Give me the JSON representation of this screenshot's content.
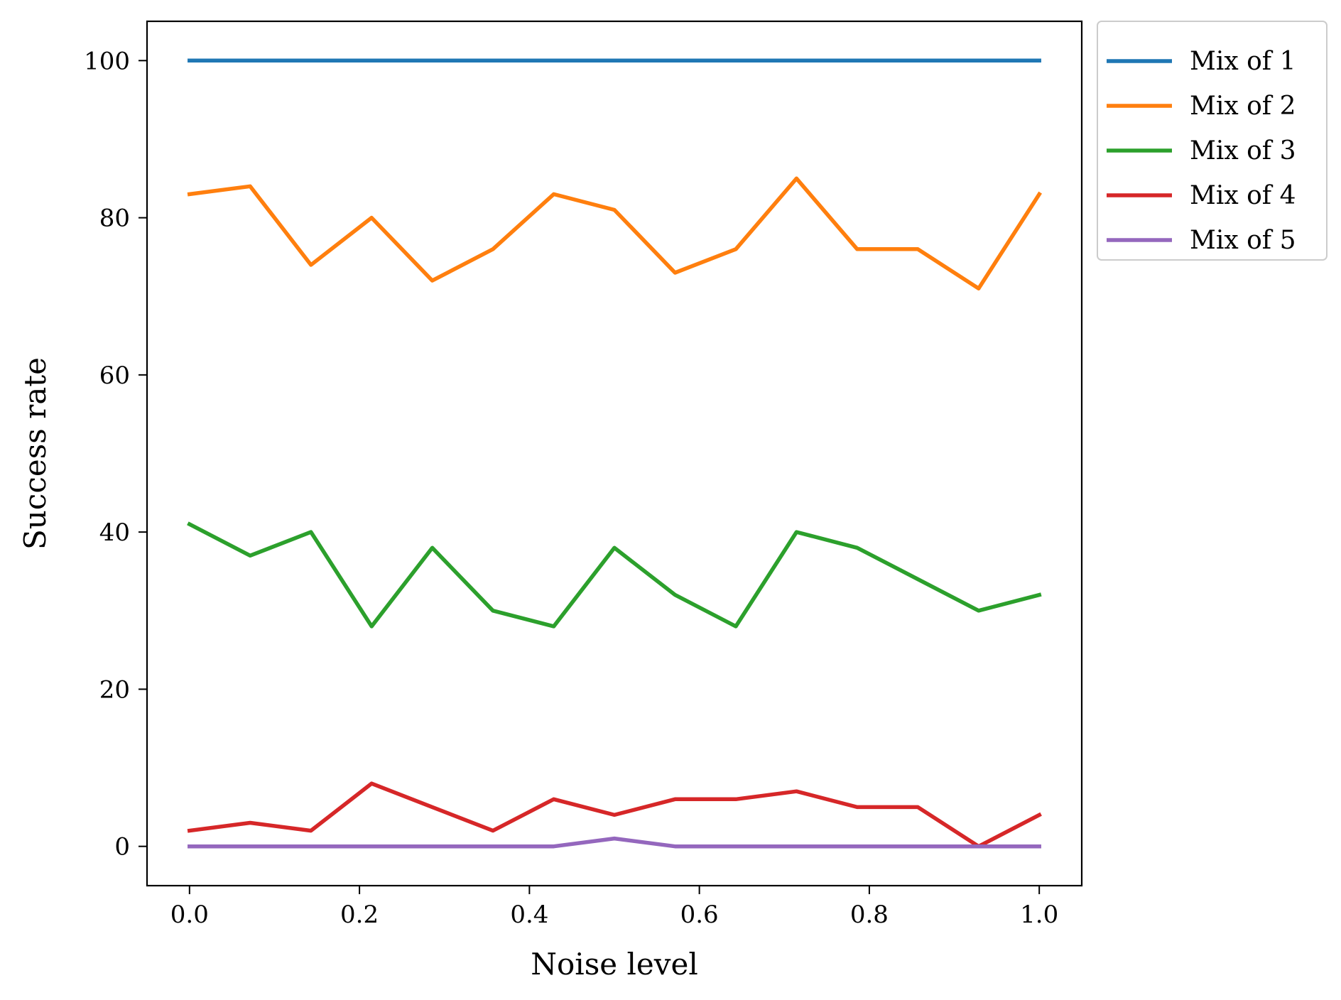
{
  "chart_data": {
    "type": "line",
    "xlabel": "Noise level",
    "ylabel": "Success rate",
    "xlim": [
      -0.05,
      1.05
    ],
    "ylim": [
      -5,
      105
    ],
    "xticks": [
      0.0,
      0.2,
      0.4,
      0.6,
      0.8,
      1.0
    ],
    "xtick_labels": [
      "0.0",
      "0.2",
      "0.4",
      "0.6",
      "0.8",
      "1.0"
    ],
    "yticks": [
      0,
      20,
      40,
      60,
      80,
      100
    ],
    "ytick_labels": [
      "0",
      "20",
      "40",
      "60",
      "80",
      "100"
    ],
    "grid": false,
    "legend_position": "outside-upper-right",
    "x": [
      0.0,
      0.0714,
      0.1429,
      0.2143,
      0.2857,
      0.3571,
      0.4286,
      0.5,
      0.5714,
      0.6429,
      0.7143,
      0.7857,
      0.8571,
      0.9286,
      1.0
    ],
    "series": [
      {
        "name": "Mix of 1",
        "color": "#1f77b4",
        "values": [
          100,
          100,
          100,
          100,
          100,
          100,
          100,
          100,
          100,
          100,
          100,
          100,
          100,
          100,
          100
        ]
      },
      {
        "name": "Mix of 2",
        "color": "#ff7f0e",
        "values": [
          83,
          84,
          74,
          80,
          72,
          76,
          83,
          81,
          73,
          76,
          85,
          76,
          76,
          71,
          83
        ]
      },
      {
        "name": "Mix of 3",
        "color": "#2ca02c",
        "values": [
          41,
          37,
          40,
          28,
          38,
          30,
          28,
          38,
          32,
          28,
          40,
          38,
          34,
          30,
          32
        ]
      },
      {
        "name": "Mix of 4",
        "color": "#d62728",
        "values": [
          2,
          3,
          2,
          8,
          5,
          2,
          6,
          4,
          6,
          6,
          7,
          5,
          5,
          0,
          4
        ]
      },
      {
        "name": "Mix of 5",
        "color": "#9467bd",
        "values": [
          0,
          0,
          0,
          0,
          0,
          0,
          0,
          1,
          0,
          0,
          0,
          0,
          0,
          0,
          0
        ]
      }
    ]
  }
}
